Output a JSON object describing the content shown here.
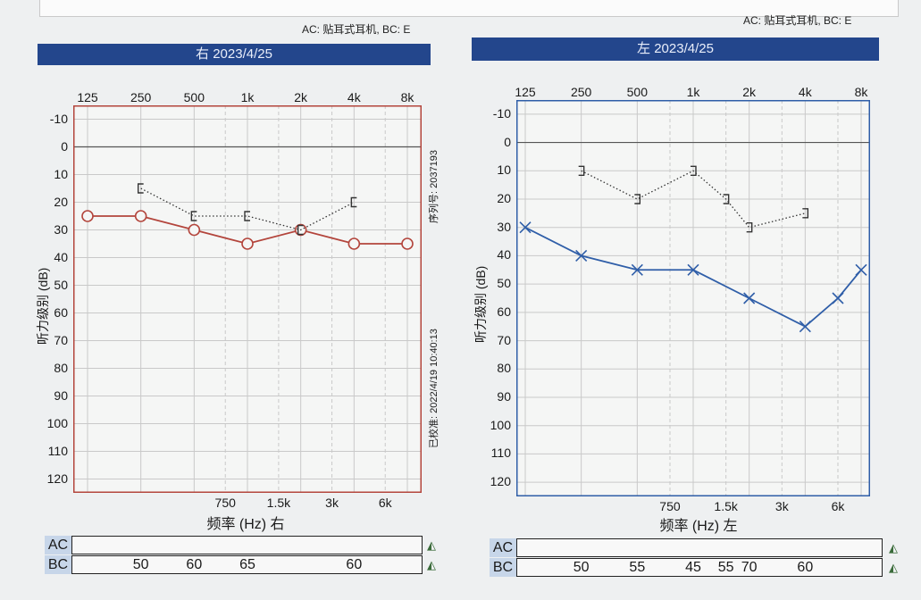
{
  "header": {
    "ac_note": "AC: 贴耳式耳机, BC: E"
  },
  "colors": {
    "right": "#b3453c",
    "left": "#2f5ea8",
    "title_bar": "#23468c",
    "grid": "#c9c9c9",
    "zero_line": "#555555"
  },
  "side_labels": {
    "serial": "序列号: 2037193",
    "calibrated": "已校准: 2022/4/19 10:40:13"
  },
  "table_labels": {
    "ac": "AC",
    "bc": "BC",
    "mark": "◭"
  },
  "chart_data": [
    {
      "type": "line",
      "ear": "right",
      "title": "右 2023/4/25",
      "ylabel": "听力级别 (dB)",
      "xlabel": "频率 (Hz) 右",
      "x_ticks_top": [
        "125",
        "250",
        "500",
        "1k",
        "2k",
        "4k",
        "8k"
      ],
      "x_ticks_bottom": [
        "750",
        "1.5k",
        "3k",
        "6k"
      ],
      "y_ticks": [
        "-10",
        "0",
        "10",
        "20",
        "30",
        "40",
        "50",
        "60",
        "70",
        "80",
        "90",
        "100",
        "110",
        "120"
      ],
      "ylim": [
        -15,
        125
      ],
      "y_inverted": true,
      "grid": true,
      "series": [
        {
          "name": "AC",
          "symbol": "O",
          "style": "solid",
          "x": [
            "125",
            "250",
            "500",
            "1k",
            "2k",
            "4k",
            "8k"
          ],
          "values": [
            25,
            25,
            30,
            35,
            30,
            35,
            35
          ]
        },
        {
          "name": "BC",
          "symbol": "[",
          "style": "dotted",
          "x": [
            "250",
            "500",
            "1k",
            "2k",
            "4k"
          ],
          "values": [
            15,
            25,
            25,
            30,
            20
          ]
        }
      ],
      "table": {
        "AC": [],
        "BC": [
          {
            "x": "250",
            "value": "50"
          },
          {
            "x": "500",
            "value": "60"
          },
          {
            "x": "1k",
            "value": "65"
          },
          {
            "x": "4k",
            "value": "60"
          }
        ]
      }
    },
    {
      "type": "line",
      "ear": "left",
      "title": "左 2023/4/25",
      "ylabel": "听力级别 (dB)",
      "xlabel": "频率 (Hz) 左",
      "x_ticks_top": [
        "125",
        "250",
        "500",
        "1k",
        "2k",
        "4k",
        "8k"
      ],
      "x_ticks_bottom": [
        "750",
        "1.5k",
        "3k",
        "6k"
      ],
      "y_ticks": [
        "-10",
        "0",
        "10",
        "20",
        "30",
        "40",
        "50",
        "60",
        "70",
        "80",
        "90",
        "100",
        "110",
        "120"
      ],
      "ylim": [
        -15,
        125
      ],
      "y_inverted": true,
      "grid": true,
      "series": [
        {
          "name": "AC",
          "symbol": "X",
          "style": "solid",
          "x": [
            "125",
            "250",
            "500",
            "1k",
            "2k",
            "4k",
            "6k",
            "8k"
          ],
          "values": [
            30,
            40,
            45,
            45,
            55,
            65,
            55,
            45
          ]
        },
        {
          "name": "BC",
          "symbol": "]",
          "style": "dotted",
          "x": [
            "250",
            "500",
            "1k",
            "1.5k",
            "2k",
            "4k"
          ],
          "values": [
            10,
            20,
            10,
            20,
            30,
            25
          ]
        }
      ],
      "table": {
        "AC": [],
        "BC": [
          {
            "x": "250",
            "value": "50"
          },
          {
            "x": "500",
            "value": "55"
          },
          {
            "x": "1k",
            "value": "45"
          },
          {
            "x": "1.5k",
            "value": "55"
          },
          {
            "x": "2k",
            "value": "70"
          },
          {
            "x": "4k",
            "value": "60"
          }
        ]
      }
    }
  ]
}
